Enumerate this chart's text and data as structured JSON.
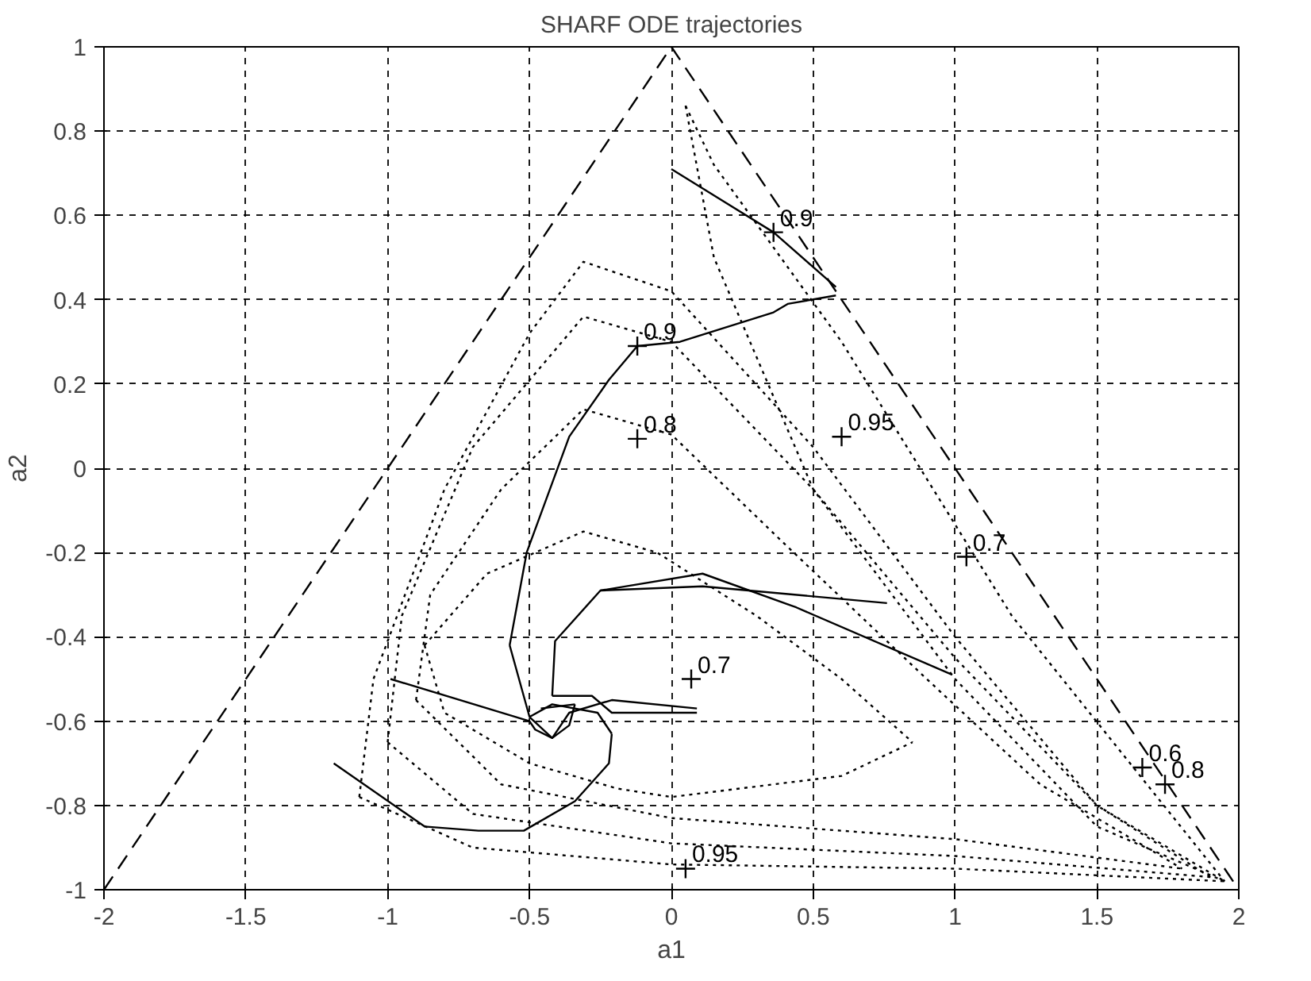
{
  "chart_data": {
    "type": "line",
    "title": "SHARF ODE trajectories",
    "xlabel": "a1",
    "ylabel": "a2",
    "xlim": [
      -2,
      2
    ],
    "ylim": [
      -1,
      1
    ],
    "xticks": [
      -2,
      -1.5,
      -1,
      -0.5,
      0,
      0.5,
      1,
      1.5,
      2
    ],
    "yticks": [
      -1,
      -0.8,
      -0.6,
      -0.4,
      -0.2,
      0,
      0.2,
      0.4,
      0.6,
      0.8,
      1
    ],
    "grid": true,
    "series": [
      {
        "type": "line",
        "line_style": "dashed",
        "color": "#000000",
        "x": [
          -2,
          0,
          2
        ],
        "values": [
          -1,
          1,
          -1
        ]
      },
      {
        "type": "line",
        "line_style": "dotted",
        "color": "#000000",
        "x": [
          0.05,
          0.15,
          0.6,
          1.2,
          1.95
        ],
        "values": [
          0.86,
          0.72,
          0.3,
          -0.35,
          -0.98
        ]
      },
      {
        "type": "line",
        "line_style": "dotted",
        "color": "#000000",
        "x": [
          0.05,
          0.15,
          0.5,
          1.0,
          1.5,
          1.95
        ],
        "values": [
          0.86,
          0.5,
          -0.05,
          -0.5,
          -0.85,
          -0.98
        ]
      },
      {
        "type": "line",
        "line_style": "dotted",
        "color": "#000000",
        "x": [
          -1.1,
          -1.05,
          -0.8,
          -0.5,
          -0.31,
          0,
          0.5,
          1,
          1.5,
          1.95
        ],
        "values": [
          -0.78,
          -0.5,
          -0.05,
          0.32,
          0.49,
          0.42,
          0.05,
          -0.4,
          -0.8,
          -0.98
        ]
      },
      {
        "type": "line",
        "line_style": "dotted",
        "color": "#000000",
        "x": [
          -1.1,
          -0.7,
          0,
          1,
          1.95
        ],
        "values": [
          -0.78,
          -0.9,
          -0.94,
          -0.95,
          -0.98
        ]
      },
      {
        "type": "line",
        "line_style": "dotted",
        "color": "#000000",
        "x": [
          -1.0,
          -0.95,
          -0.7,
          -0.31,
          0,
          0.5,
          1,
          1.5,
          1.9
        ],
        "values": [
          -0.65,
          -0.35,
          0.05,
          0.36,
          0.3,
          -0.05,
          -0.45,
          -0.8,
          -0.97
        ]
      },
      {
        "type": "line",
        "line_style": "dotted",
        "color": "#000000",
        "x": [
          -1.0,
          -0.7,
          0,
          1,
          1.9
        ],
        "values": [
          -0.65,
          -0.82,
          -0.89,
          -0.92,
          -0.97
        ]
      },
      {
        "type": "line",
        "line_style": "dotted",
        "color": "#000000",
        "x": [
          -0.9,
          -0.85,
          -0.6,
          -0.31,
          0,
          0.4,
          0.9,
          1.3,
          1.8
        ],
        "values": [
          -0.55,
          -0.3,
          -0.05,
          0.14,
          0.08,
          -0.18,
          -0.5,
          -0.75,
          -0.95
        ]
      },
      {
        "type": "line",
        "line_style": "dotted",
        "color": "#000000",
        "x": [
          -0.9,
          -0.6,
          0,
          1,
          1.8
        ],
        "values": [
          -0.55,
          -0.75,
          -0.83,
          -0.88,
          -0.95
        ]
      },
      {
        "type": "line",
        "line_style": "dotted",
        "color": "#000000",
        "x": [
          -0.87,
          -0.65,
          -0.31,
          -0.05,
          0.3,
          0.6,
          0.85
        ],
        "values": [
          -0.42,
          -0.25,
          -0.15,
          -0.2,
          -0.35,
          -0.5,
          -0.65
        ]
      },
      {
        "type": "line",
        "line_style": "dotted",
        "color": "#000000",
        "x": [
          -0.87,
          -0.8,
          -0.5,
          -0.19,
          0,
          0.6,
          0.85
        ],
        "values": [
          -0.42,
          -0.58,
          -0.7,
          -0.76,
          -0.78,
          -0.73,
          -0.65
        ]
      },
      {
        "type": "line",
        "line_style": "solid",
        "color": "#000000",
        "x": [
          0.0,
          0.36,
          0.58
        ],
        "values": [
          0.71,
          0.56,
          0.43
        ]
      },
      {
        "type": "line",
        "line_style": "solid",
        "color": "#000000",
        "x": [
          0.58,
          0.41,
          0.36,
          0.03,
          -0.12,
          -0.22,
          -0.36,
          -0.51,
          -0.57
        ],
        "values": [
          0.41,
          0.39,
          0.37,
          0.3,
          0.29,
          0.21,
          0.075,
          -0.2,
          -0.42
        ]
      },
      {
        "type": "line",
        "line_style": "solid",
        "color": "#000000",
        "x": [
          -0.57,
          -0.5,
          -0.42,
          -0.36,
          -0.21,
          0.09
        ],
        "values": [
          -0.42,
          -0.59,
          -0.64,
          -0.58,
          -0.55,
          -0.57
        ]
      },
      {
        "type": "line",
        "line_style": "solid",
        "color": "#000000",
        "x": [
          0.99,
          0.44,
          0.11,
          -0.25,
          -0.41,
          -0.42
        ],
        "values": [
          -0.49,
          -0.33,
          -0.25,
          -0.29,
          -0.41,
          -0.54
        ]
      },
      {
        "type": "line",
        "line_style": "solid",
        "color": "#000000",
        "x": [
          -0.42,
          -0.28,
          -0.21,
          0.09
        ],
        "values": [
          -0.54,
          -0.54,
          -0.58,
          -0.58
        ]
      },
      {
        "type": "line",
        "line_style": "solid",
        "color": "#000000",
        "x": [
          0.76,
          0.11,
          -0.25
        ],
        "values": [
          -0.32,
          -0.28,
          -0.29
        ]
      },
      {
        "type": "line",
        "line_style": "solid",
        "color": "#000000",
        "x": [
          -0.99,
          -0.5,
          -0.48,
          -0.42,
          -0.36,
          -0.34
        ],
        "values": [
          -0.5,
          -0.6,
          -0.62,
          -0.64,
          -0.61,
          -0.56
        ]
      },
      {
        "type": "line",
        "line_style": "solid",
        "color": "#000000",
        "x": [
          -0.34,
          -0.46
        ],
        "values": [
          -0.56,
          -0.57
        ]
      },
      {
        "type": "line",
        "line_style": "solid",
        "color": "#000000",
        "x": [
          -1.19,
          -0.87,
          -0.68,
          -0.52,
          -0.34,
          -0.22,
          -0.21
        ],
        "values": [
          -0.7,
          -0.85,
          -0.86,
          -0.86,
          -0.79,
          -0.7,
          -0.63
        ]
      },
      {
        "type": "line",
        "line_style": "solid",
        "color": "#000000",
        "x": [
          -0.21,
          -0.26,
          -0.42,
          -0.5
        ],
        "values": [
          -0.63,
          -0.58,
          -0.56,
          -0.59
        ]
      },
      {
        "type": "scatter",
        "marker": "cross",
        "color": "#000000",
        "x": [
          0.36,
          -0.12,
          -0.12,
          0.6,
          1.04,
          0.07,
          0.05,
          1.66,
          1.74
        ],
        "values": [
          0.56,
          0.29,
          0.07,
          0.075,
          -0.21,
          -0.5,
          -0.95,
          -0.71,
          -0.75
        ]
      }
    ],
    "annotations": [
      {
        "text": "0.9",
        "x": 0.36,
        "y": 0.56
      },
      {
        "text": "0.9",
        "x": -0.12,
        "y": 0.29
      },
      {
        "text": "0.8",
        "x": -0.12,
        "y": 0.07
      },
      {
        "text": "0.95",
        "x": 0.6,
        "y": 0.075
      },
      {
        "text": "0.7",
        "x": 1.04,
        "y": -0.21
      },
      {
        "text": "0.7",
        "x": 0.07,
        "y": -0.5
      },
      {
        "text": "0.95",
        "x": 0.05,
        "y": -0.95
      },
      {
        "text": "0.6",
        "x": 1.66,
        "y": -0.71
      },
      {
        "text": "0.8",
        "x": 1.74,
        "y": -0.75
      }
    ]
  }
}
